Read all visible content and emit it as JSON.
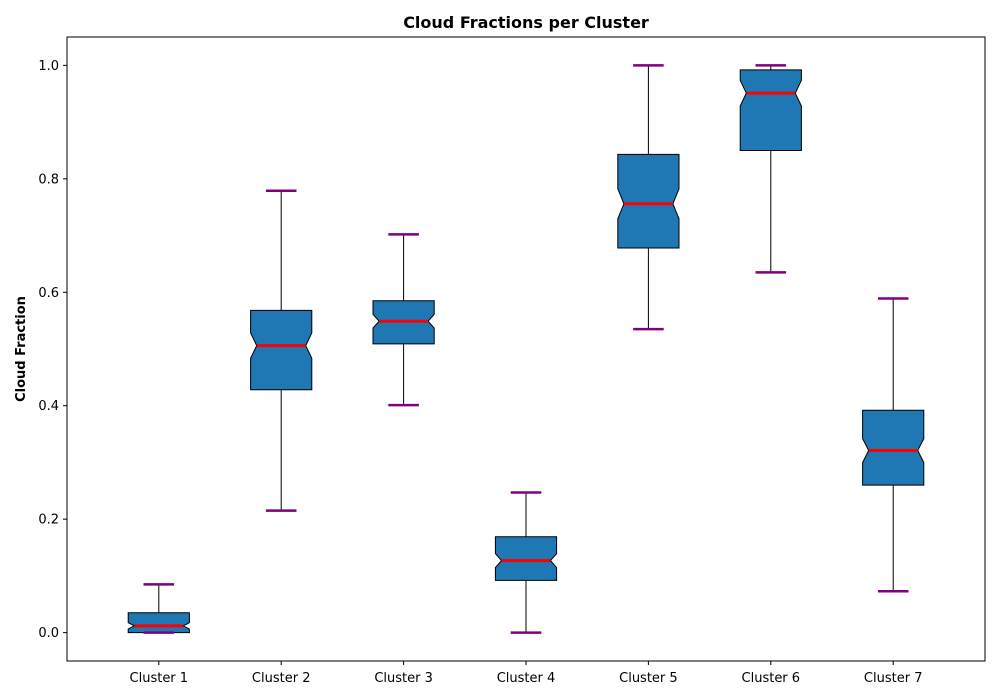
{
  "chart_data": {
    "type": "box",
    "title": "Cloud Fractions per Cluster",
    "xlabel": "",
    "ylabel": "Cloud Fraction",
    "ylim": [
      -0.05,
      1.05
    ],
    "yticks": [
      0.0,
      0.2,
      0.4,
      0.6,
      0.8,
      1.0
    ],
    "ytick_labels": [
      "0.0",
      "0.2",
      "0.4",
      "0.6",
      "0.8",
      "1.0"
    ],
    "categories": [
      "Cluster 1",
      "Cluster 2",
      "Cluster 3",
      "Cluster 4",
      "Cluster 5",
      "Cluster 6",
      "Cluster 7"
    ],
    "boxes": [
      {
        "label": "Cluster 1",
        "whisker_low": 0.0,
        "q1": 0.0,
        "median": 0.012,
        "q3": 0.035,
        "whisker_high": 0.085
      },
      {
        "label": "Cluster 2",
        "whisker_low": 0.215,
        "q1": 0.428,
        "median": 0.506,
        "q3": 0.568,
        "whisker_high": 0.779
      },
      {
        "label": "Cluster 3",
        "whisker_low": 0.401,
        "q1": 0.509,
        "median": 0.549,
        "q3": 0.585,
        "whisker_high": 0.702
      },
      {
        "label": "Cluster 4",
        "whisker_low": 0.0,
        "q1": 0.092,
        "median": 0.127,
        "q3": 0.169,
        "whisker_high": 0.247
      },
      {
        "label": "Cluster 5",
        "whisker_low": 0.535,
        "q1": 0.678,
        "median": 0.756,
        "q3": 0.843,
        "whisker_high": 1.0
      },
      {
        "label": "Cluster 6",
        "whisker_low": 0.635,
        "q1": 0.85,
        "median": 0.951,
        "q3": 0.992,
        "whisker_high": 1.0
      },
      {
        "label": "Cluster 7",
        "whisker_low": 0.073,
        "q1": 0.26,
        "median": 0.321,
        "q3": 0.392,
        "whisker_high": 0.589
      }
    ],
    "notched": true,
    "grid": false,
    "colors": {
      "box_fill": "#1f77b4",
      "box_edge": "#000000",
      "median": "#ff0000",
      "caps": "#800080",
      "whiskers": "#000000"
    }
  }
}
